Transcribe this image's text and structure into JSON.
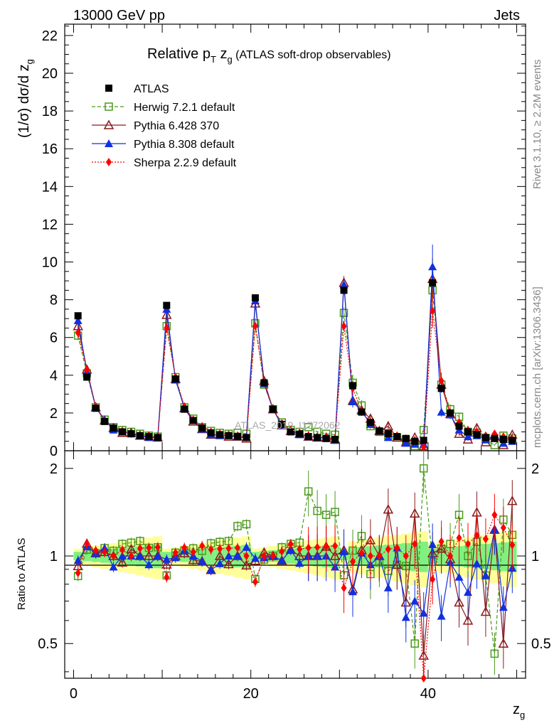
{
  "header": {
    "left": "13000 GeV pp",
    "right": "Jets"
  },
  "side_labels": {
    "top": "Rivet 3.1.10, ≥ 2.2M events",
    "bottom": "mcplots.cern.ch [arXiv:1306.3436]"
  },
  "watermark": "ATLAS_2019_I1772062",
  "main_plot": {
    "title_main": "Relative p",
    "title_sub": "T",
    "title_mid": " z",
    "title_sub2": "g",
    "title_rest": " (ATLAS soft-drop observables)",
    "ylabel": "(1/σ) dσ/d z",
    "ylabel_sub": "g",
    "yticks": [
      "0",
      "2",
      "4",
      "6",
      "8",
      "10",
      "12",
      "14",
      "16",
      "18",
      "20",
      "22"
    ]
  },
  "ratio_plot": {
    "ylabel": "Ratio to ATLAS",
    "yticks": [
      "0.5",
      "1",
      "2"
    ]
  },
  "xaxis": {
    "label": "z",
    "label_sub": "g",
    "ticks": [
      "0",
      "20",
      "40"
    ]
  },
  "legend": [
    {
      "name": "ATLAS",
      "color": "#000000",
      "marker": "square-filled"
    },
    {
      "name": "Herwig 7.2.1 default",
      "color": "#4a9a1a",
      "marker": "square-open"
    },
    {
      "name": "Pythia 6.428 370",
      "color": "#8b1a1a",
      "marker": "triangle-open"
    },
    {
      "name": "Pythia 8.308 default",
      "color": "#1030e0",
      "marker": "triangle-filled"
    },
    {
      "name": "Sherpa 2.2.9 default",
      "color": "#ff0000",
      "marker": "diamond-filled"
    }
  ],
  "chart_data": {
    "type": "scatter",
    "xlabel": "z_g",
    "ylabel": "(1/σ) dσ/d z_g",
    "ylim": [
      0,
      22.6
    ],
    "xlim": [
      -1,
      51
    ],
    "ratio_ylim": [
      0.38,
      2.3
    ],
    "x": [
      0.5,
      1.5,
      2.5,
      3.5,
      4.5,
      5.5,
      6.5,
      7.5,
      8.5,
      9.5,
      10.5,
      11.5,
      12.5,
      13.5,
      14.5,
      15.5,
      16.5,
      17.5,
      18.5,
      19.5,
      20.5,
      21.5,
      22.5,
      23.5,
      24.5,
      25.5,
      26.5,
      27.5,
      28.5,
      29.5,
      30.5,
      31.5,
      32.5,
      33.5,
      34.5,
      35.5,
      36.5,
      37.5,
      38.5,
      39.5,
      40.5,
      41.5,
      42.5,
      43.5,
      44.5,
      45.5,
      46.5,
      47.5,
      48.5,
      49.5
    ],
    "series": [
      {
        "name": "ATLAS",
        "values": [
          7.15,
          3.9,
          2.25,
          1.55,
          1.2,
          1.0,
          0.9,
          0.8,
          0.75,
          0.7,
          7.7,
          3.8,
          2.2,
          1.6,
          1.2,
          0.95,
          0.85,
          0.8,
          0.75,
          0.7,
          8.1,
          3.6,
          2.2,
          1.4,
          1.0,
          0.9,
          0.75,
          0.7,
          0.65,
          0.6,
          8.5,
          3.45,
          2.05,
          1.5,
          1.05,
          0.9,
          0.75,
          0.65,
          0.5,
          0.55,
          8.9,
          3.3,
          2.0,
          1.3,
          1.0,
          0.85,
          0.7,
          0.65,
          0.6,
          0.55
        ]
      },
      {
        "name": "Herwig 7.2.1 default",
        "values": [
          6.1,
          4.1,
          2.3,
          1.65,
          1.25,
          1.1,
          1.0,
          0.9,
          0.8,
          0.75,
          6.6,
          3.9,
          2.3,
          1.7,
          1.25,
          1.05,
          0.95,
          0.9,
          0.95,
          0.9,
          6.75,
          3.5,
          2.2,
          1.5,
          1.1,
          1.0,
          1.25,
          1.0,
          0.9,
          0.85,
          7.3,
          3.6,
          2.4,
          1.3,
          1.0,
          0.8,
          0.7,
          0.6,
          0.25,
          1.1,
          8.5,
          3.5,
          2.2,
          1.8,
          1.0,
          0.95,
          0.6,
          0.3,
          0.8,
          0.65
        ]
      },
      {
        "name": "Pythia 6.428 370",
        "values": [
          6.6,
          4.3,
          2.3,
          1.6,
          1.2,
          0.95,
          0.95,
          0.8,
          0.75,
          0.7,
          7.2,
          3.8,
          2.25,
          1.55,
          1.15,
          0.85,
          0.85,
          0.75,
          0.75,
          0.65,
          7.8,
          3.7,
          2.2,
          1.35,
          1.05,
          0.9,
          0.75,
          0.7,
          0.7,
          0.6,
          8.9,
          2.65,
          2.15,
          1.7,
          1.05,
          1.3,
          0.7,
          0.45,
          0.7,
          0.25,
          9.1,
          3.5,
          1.95,
          0.9,
          0.6,
          1.2,
          0.45,
          0.8,
          0.3,
          0.85
        ]
      },
      {
        "name": "Pythia 8.308 default",
        "values": [
          6.9,
          4.2,
          2.3,
          1.65,
          1.1,
          1.0,
          0.9,
          0.8,
          0.7,
          0.7,
          7.5,
          3.75,
          2.3,
          1.6,
          1.15,
          0.85,
          0.8,
          0.8,
          0.75,
          0.75,
          7.95,
          3.55,
          2.2,
          1.35,
          1.05,
          0.85,
          0.75,
          0.7,
          0.65,
          0.55,
          8.8,
          2.6,
          2.1,
          1.4,
          1.05,
          0.7,
          0.8,
          0.4,
          0.35,
          0.35,
          9.75,
          2.05,
          1.9,
          1.1,
          0.75,
          0.8,
          0.6,
          0.8,
          0.4,
          0.5
        ]
      },
      {
        "name": "Sherpa 2.2.9 default",
        "values": [
          6.25,
          4.3,
          2.35,
          1.6,
          1.2,
          1.05,
          0.9,
          0.85,
          0.8,
          0.75,
          6.5,
          3.9,
          2.35,
          1.65,
          1.3,
          1.0,
          0.9,
          0.85,
          0.8,
          0.7,
          6.6,
          3.6,
          2.2,
          1.45,
          1.1,
          0.95,
          0.8,
          0.75,
          0.7,
          0.65,
          6.6,
          3.3,
          2.1,
          1.5,
          1.05,
          0.95,
          0.8,
          0.65,
          0.55,
          0.2,
          7.4,
          3.7,
          2.0,
          1.5,
          1.1,
          1.0,
          0.8,
          0.9,
          0.75,
          0.6
        ]
      }
    ]
  }
}
